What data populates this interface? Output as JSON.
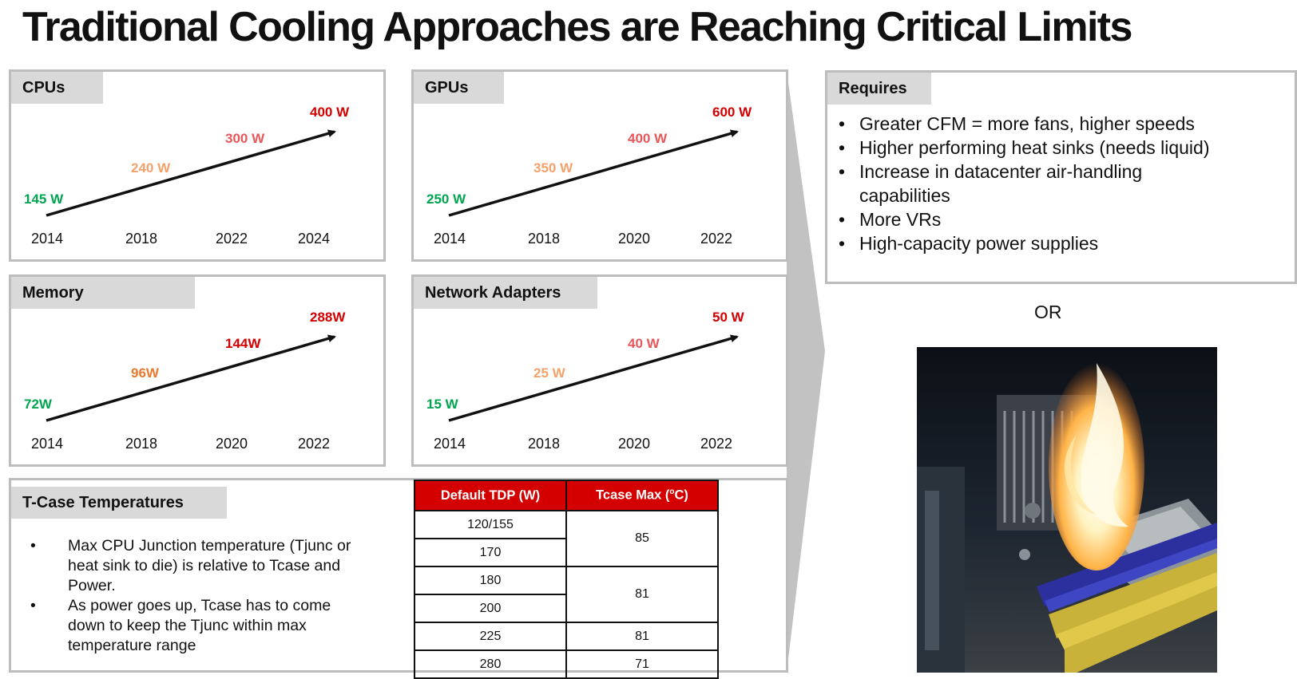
{
  "title": "Traditional Cooling Approaches are Reaching Critical Limits",
  "colors": {
    "green": "#00a550",
    "light_orange": "#f4a26c",
    "orange": "#e97a2e",
    "salmon": "#e8575a",
    "red": "#d40000",
    "tab_gray": "#d9d9d9",
    "border_gray": "#bdbdbd"
  },
  "chart_data": [
    {
      "type": "line",
      "title": "CPUs",
      "categories": [
        "2014",
        "2018",
        "2022",
        "2024"
      ],
      "value_labels": [
        "145 W",
        "240 W",
        "300 W",
        "400 W"
      ],
      "values": [
        145,
        240,
        300,
        400
      ],
      "label_colors": [
        "#00a550",
        "#f4a26c",
        "#e8575a",
        "#d40000"
      ]
    },
    {
      "type": "line",
      "title": "GPUs",
      "categories": [
        "2014",
        "2018",
        "2020",
        "2022"
      ],
      "value_labels": [
        "250 W",
        "350 W",
        "400 W",
        "600 W"
      ],
      "values": [
        250,
        350,
        400,
        600
      ],
      "label_colors": [
        "#00a550",
        "#f4a26c",
        "#e8575a",
        "#d40000"
      ]
    },
    {
      "type": "line",
      "title": "Memory",
      "categories": [
        "2014",
        "2018",
        "2020",
        "2022"
      ],
      "value_labels": [
        "72W",
        "96W",
        "144W",
        "288W"
      ],
      "values": [
        72,
        96,
        144,
        288
      ],
      "label_colors": [
        "#00a550",
        "#e97a2e",
        "#d40000",
        "#d40000"
      ]
    },
    {
      "type": "line",
      "title": "Network Adapters",
      "categories": [
        "2014",
        "2018",
        "2020",
        "2022"
      ],
      "value_labels": [
        "15 W",
        "25 W",
        "40 W",
        "50 W"
      ],
      "values": [
        15,
        25,
        40,
        50
      ],
      "label_colors": [
        "#00a550",
        "#f4a26c",
        "#e8575a",
        "#d40000"
      ]
    },
    {
      "type": "table",
      "title": "T-Case Temperatures",
      "columns": [
        "Default TDP (W)",
        "Tcase Max (oC)"
      ],
      "rows": [
        [
          "120/155",
          "85"
        ],
        [
          "170",
          "85"
        ],
        [
          "180",
          "81"
        ],
        [
          "200",
          "81"
        ],
        [
          "225",
          "81"
        ],
        [
          "280",
          "71"
        ]
      ]
    }
  ],
  "tcase": {
    "tab": "T-Case Temperatures",
    "bullets": [
      "Max CPU Junction temperature (Tjunc or heat sink to die) is relative to Tcase and Power.",
      "As power goes up, Tcase has to come down to keep the Tjunc within max temperature range"
    ],
    "table": {
      "col1_header": "Default TDP (W)",
      "col2_header_main": "Tcase Max (",
      "col2_header_sup": "o",
      "col2_header_end": "C)",
      "tdp": [
        "120/155",
        "170",
        "180",
        "200",
        "225",
        "280"
      ],
      "tcase_groups": [
        "85",
        "81",
        "81",
        "71"
      ]
    }
  },
  "requires": {
    "tab": "Requires",
    "bullets": [
      "Greater CFM = more fans, higher speeds",
      "Higher performing heat sinks (needs liquid)",
      "Increase in datacenter air-handling capabilities",
      "More VRs",
      "High-capacity power supplies"
    ]
  },
  "or_label": "OR",
  "photo": {
    "icon": "burning-motherboard-photo"
  }
}
